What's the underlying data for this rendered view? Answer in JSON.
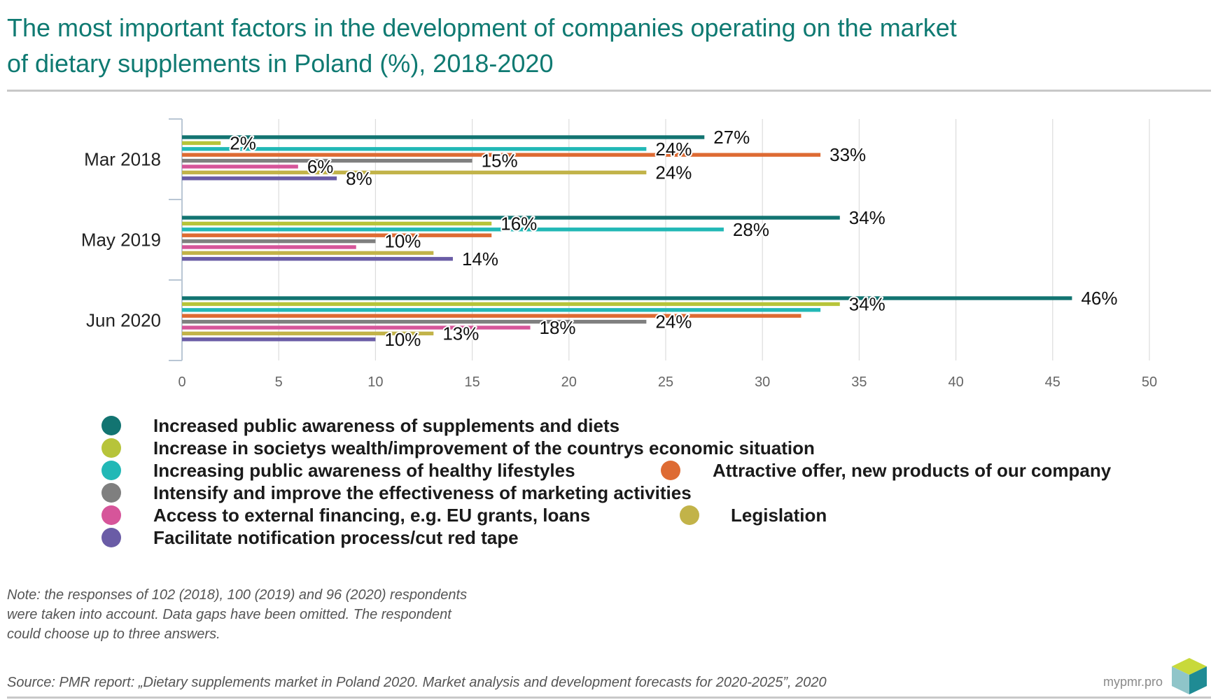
{
  "title": {
    "line1": "The most important factors in the development of companies operating on the market",
    "line2": "of dietary supplements in Poland (%), 2018-2020"
  },
  "chart_data": {
    "type": "bar",
    "orientation": "horizontal",
    "categories": [
      "Mar 2018",
      "May 2019",
      "Jun 2020"
    ],
    "xlim": [
      0,
      50
    ],
    "xticks": [
      0,
      5,
      10,
      15,
      20,
      25,
      30,
      35,
      40,
      45,
      50
    ],
    "grid": true,
    "legend_position": "bottom",
    "series": [
      {
        "name": "Increased public awareness of supplements and diets",
        "color": "#127471",
        "values": [
          27,
          34,
          46
        ],
        "labels": [
          "27%",
          "34%",
          "46%"
        ]
      },
      {
        "name": "Increase in societys wealth/improvement of the countrys economic situation",
        "color": "#b7c43a",
        "values": [
          2,
          16,
          34
        ],
        "labels": [
          "2%",
          "16%",
          "34%"
        ]
      },
      {
        "name": "Increasing public awareness of healthy lifestyles",
        "color": "#22b8b6",
        "values": [
          24,
          28,
          33
        ],
        "labels": [
          "24%",
          "28%",
          ""
        ]
      },
      {
        "name": "Attractive offer, new products of our company",
        "color": "#de6b33",
        "values": [
          33,
          16,
          32
        ],
        "labels": [
          "33%",
          "",
          ""
        ]
      },
      {
        "name": "Intensify and improve the effectiveness of marketing activities",
        "color": "#7f7f7f",
        "values": [
          15,
          10,
          24
        ],
        "labels": [
          "15%",
          "10%",
          "24%"
        ]
      },
      {
        "name": "Access to external financing, e.g. EU grants, loans",
        "color": "#d6559a",
        "values": [
          6,
          9,
          18
        ],
        "labels": [
          "6%",
          "",
          "18%"
        ]
      },
      {
        "name": "Legislation",
        "color": "#c2b349",
        "values": [
          24,
          13,
          13
        ],
        "labels": [
          "24%",
          "",
          "13%"
        ]
      },
      {
        "name": "Facilitate notification process/cut red tape",
        "color": "#6a5ca6",
        "values": [
          8,
          14,
          10
        ],
        "labels": [
          "8%",
          "14%",
          "10%"
        ]
      }
    ]
  },
  "note": {
    "line1": "Note: the responses of 102 (2018), 100 (2019) and 96 (2020) respondents",
    "line2": "were taken into account. Data gaps have been omitted. The respondent",
    "line3": "could choose up to three answers."
  },
  "source": "Source: PMR report: „Dietary supplements market in Poland 2020. Market analysis and development forecasts for 2020-2025”, 2020",
  "brand": "mypmr.pro"
}
